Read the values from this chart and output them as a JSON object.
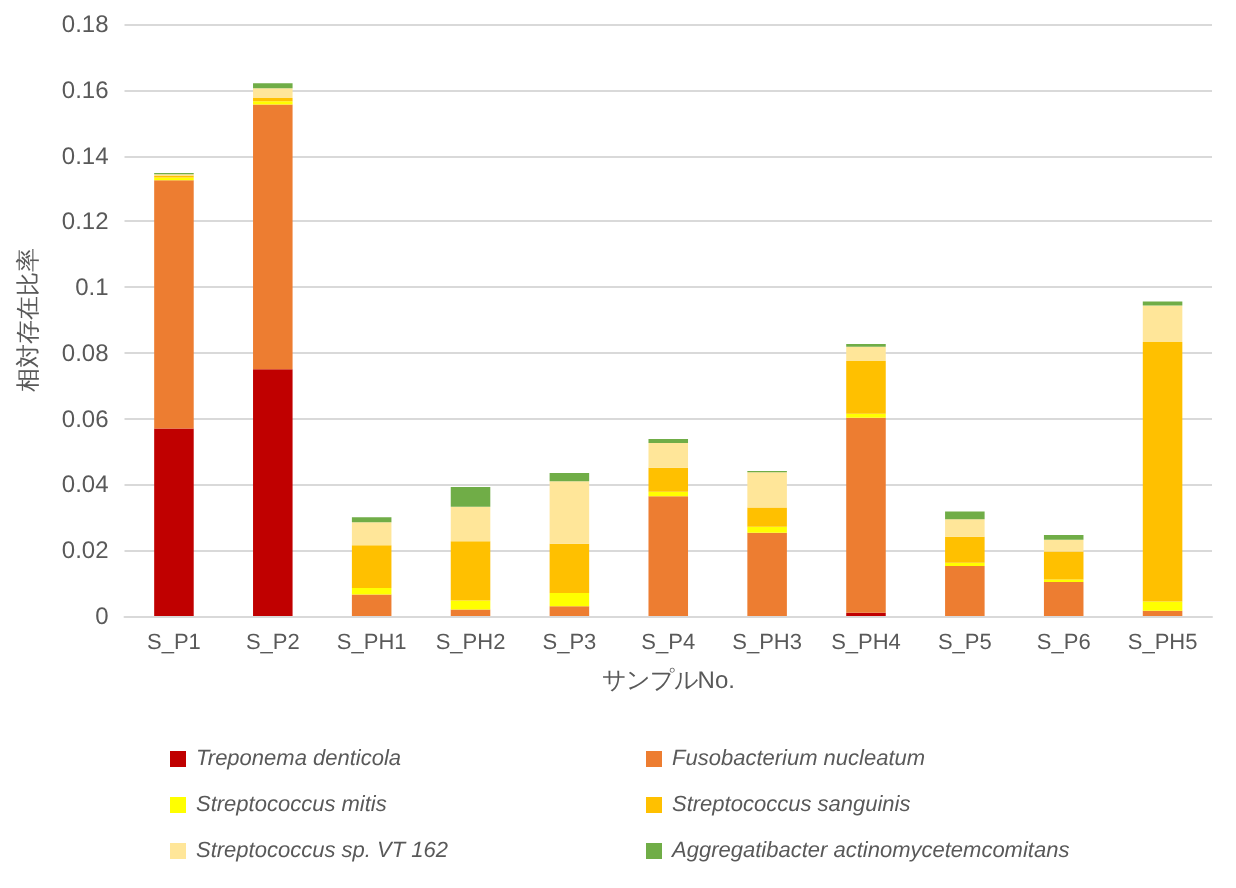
{
  "chart_data": {
    "type": "bar",
    "stacked": true,
    "xlabel": "サンプルNo.",
    "ylabel": "相対存在比率",
    "categories": [
      "S_P1",
      "S_P2",
      "S_PH1",
      "S_PH2",
      "S_P3",
      "S_P4",
      "S_PH3",
      "S_PH4",
      "S_P5",
      "S_P6",
      "S_PH5"
    ],
    "series": [
      {
        "name": "Treponema denticola",
        "color": "#c00000",
        "values": [
          0.057,
          0.075,
          0,
          0,
          0,
          0,
          0,
          0.001,
          0,
          0,
          0
        ]
      },
      {
        "name": "Fusobacterium nucleatum",
        "color": "#ed7d31",
        "values": [
          0.0755,
          0.0805,
          0.0065,
          0.002,
          0.003,
          0.0364,
          0.0253,
          0.0593,
          0.0152,
          0.0103,
          0.0016
        ]
      },
      {
        "name": "Streptococcus mitis",
        "color": "#ffff00",
        "values": [
          0.0008,
          0.001,
          0.002,
          0.0027,
          0.004,
          0.0014,
          0.0018,
          0.0012,
          0.001,
          0.0008,
          0.0028
        ]
      },
      {
        "name": "Streptococcus sanguinis",
        "color": "#ffc000",
        "values": [
          0.0006,
          0.001,
          0.013,
          0.018,
          0.015,
          0.0073,
          0.0059,
          0.016,
          0.0079,
          0.0085,
          0.0789
        ]
      },
      {
        "name": "Streptococcus sp. VT 162",
        "color": "#ffe699",
        "values": [
          0.0004,
          0.003,
          0.007,
          0.0105,
          0.019,
          0.0075,
          0.0107,
          0.0044,
          0.0053,
          0.0036,
          0.0111
        ]
      },
      {
        "name": "Aggregatibacter actinomycetemcomitans",
        "color": "#70ad47",
        "values": [
          0.0004,
          0.0015,
          0.0015,
          0.006,
          0.0025,
          0.0012,
          0.0004,
          0.0008,
          0.0024,
          0.0014,
          0.0012
        ]
      }
    ],
    "ylim": [
      0,
      0.18
    ],
    "yticks": [
      0,
      0.02,
      0.04,
      0.06,
      0.08,
      0.1,
      0.12,
      0.14,
      0.16,
      0.18
    ],
    "grid": "y",
    "legend": "bottom"
  }
}
